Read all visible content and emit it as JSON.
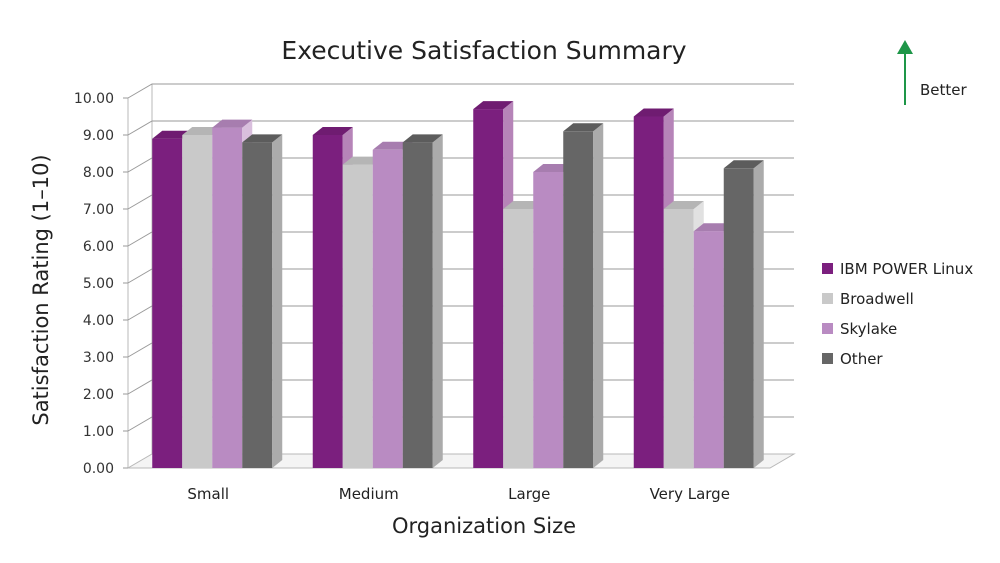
{
  "chart_data": {
    "type": "bar",
    "title": "Executive Satisfaction Summary",
    "xlabel": "Organization Size",
    "ylabel": "Satisfaction Rating (1–10)",
    "ylim": [
      0,
      10
    ],
    "ytick_step": 1,
    "ytick_labels": [
      "0.00",
      "1.00",
      "2.00",
      "3.00",
      "4.00",
      "5.00",
      "6.00",
      "7.00",
      "8.00",
      "9.00",
      "10.00"
    ],
    "categories": [
      "Small",
      "Medium",
      "Large",
      "Very Large"
    ],
    "series": [
      {
        "name": "IBM POWER Linux",
        "color": "#7B1F7E",
        "values": [
          8.9,
          9.0,
          9.7,
          9.5
        ]
      },
      {
        "name": "Broadwell",
        "color": "#C9C9C9",
        "values": [
          9.0,
          8.2,
          7.0,
          7.0
        ]
      },
      {
        "name": "Skylake",
        "color": "#B98BC2",
        "values": [
          9.2,
          8.6,
          8.0,
          6.4
        ]
      },
      {
        "name": "Other",
        "color": "#666666",
        "values": [
          8.8,
          8.8,
          9.1,
          8.1
        ]
      }
    ],
    "legend_position": "right",
    "grid": true,
    "annotation": {
      "text": "Better",
      "arrow_color": "#1E9648",
      "direction": "up"
    }
  }
}
